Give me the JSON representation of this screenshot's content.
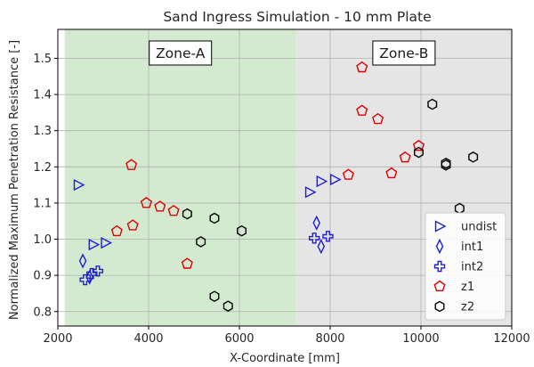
{
  "chart_data": {
    "type": "scatter",
    "title": "Sand Ingress Simulation - 10 mm Plate",
    "xlabel": "X-Coordinate [mm]",
    "ylabel": "Normalized Maximum Penetration Resistance [-]",
    "xlim": [
      2000,
      12000
    ],
    "ylim": [
      0.76,
      1.58
    ],
    "xticks": [
      2000,
      4000,
      6000,
      8000,
      10000,
      12000
    ],
    "yticks": [
      0.8,
      0.9,
      1.0,
      1.1,
      1.2,
      1.3,
      1.4,
      1.5
    ],
    "grid": true,
    "legend_position": "lower-right",
    "zones": [
      {
        "label": "Zone-A",
        "x_range": [
          2150,
          7250
        ],
        "color": "#d4ead0"
      },
      {
        "label": "Zone-B",
        "x_range": [
          7250,
          12000
        ],
        "color": "#e5e5e5"
      }
    ],
    "series": [
      {
        "name": "undist",
        "marker": "triangle-right",
        "color": "#1f1fd0",
        "points": [
          [
            2450,
            1.15
          ],
          [
            2780,
            0.985
          ],
          [
            3050,
            0.99
          ],
          [
            7550,
            1.13
          ],
          [
            7800,
            1.16
          ],
          [
            8100,
            1.165
          ]
        ]
      },
      {
        "name": "int1",
        "marker": "thin-diamond",
        "color": "#1f1fd0",
        "points": [
          [
            2550,
            0.94
          ],
          [
            2700,
            0.895
          ],
          [
            7700,
            1.045
          ],
          [
            7800,
            0.98
          ]
        ]
      },
      {
        "name": "int2",
        "marker": "plus",
        "color": "#1f1fd0",
        "points": [
          [
            2600,
            0.888
          ],
          [
            2750,
            0.905
          ],
          [
            2880,
            0.912
          ],
          [
            7650,
            1.003
          ],
          [
            7950,
            1.008
          ]
        ]
      },
      {
        "name": "z1",
        "marker": "pentagon",
        "color": "#e00000",
        "points": [
          [
            3300,
            1.022
          ],
          [
            3650,
            1.038
          ],
          [
            3620,
            1.205
          ],
          [
            3950,
            1.1
          ],
          [
            4250,
            1.09
          ],
          [
            4550,
            1.078
          ],
          [
            4850,
            0.932
          ],
          [
            8400,
            1.178
          ],
          [
            8700,
            1.355
          ],
          [
            8700,
            1.475
          ],
          [
            9050,
            1.332
          ],
          [
            9350,
            1.182
          ],
          [
            9650,
            1.226
          ],
          [
            9950,
            1.258
          ]
        ]
      },
      {
        "name": "z2",
        "marker": "hexagon",
        "color": "#000000",
        "points": [
          [
            4850,
            1.07
          ],
          [
            5150,
            0.993
          ],
          [
            5450,
            1.058
          ],
          [
            5450,
            0.842
          ],
          [
            5750,
            0.815
          ],
          [
            6050,
            1.023
          ],
          [
            9950,
            1.24
          ],
          [
            10250,
            1.373
          ],
          [
            10550,
            1.205
          ],
          [
            10550,
            1.21
          ],
          [
            10850,
            1.085
          ],
          [
            11150,
            1.227
          ]
        ]
      }
    ]
  }
}
